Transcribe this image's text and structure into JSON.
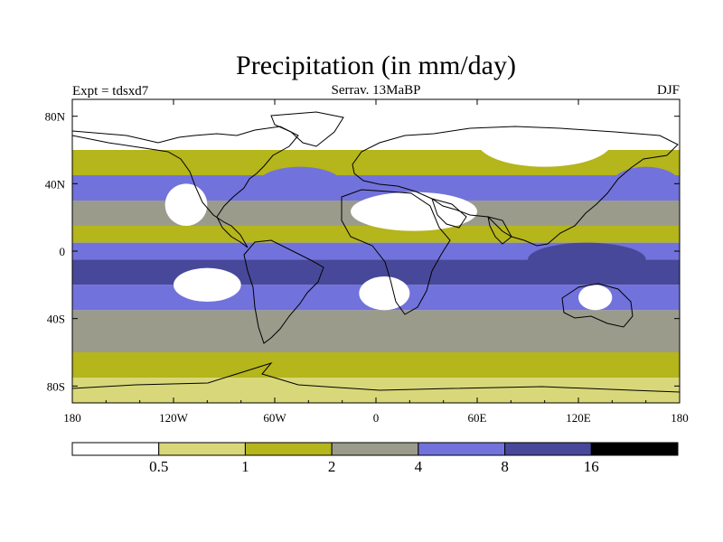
{
  "title": "Precipitation (in mm/day)",
  "header": {
    "left": "Expt = tdsxd7",
    "center": "Serrav.   13MaBP",
    "right": "DJF"
  },
  "map": {
    "lon_range": [
      -180,
      180
    ],
    "lat_range": [
      -90,
      90
    ],
    "lon_ticks": [
      {
        "value": -180,
        "label": "180"
      },
      {
        "value": -120,
        "label": "120W"
      },
      {
        "value": -60,
        "label": "60W"
      },
      {
        "value": 0,
        "label": "0"
      },
      {
        "value": 60,
        "label": "60E"
      },
      {
        "value": 120,
        "label": "120E"
      },
      {
        "value": 180,
        "label": "180"
      }
    ],
    "lat_ticks": [
      {
        "value": 80,
        "label": "80N"
      },
      {
        "value": 40,
        "label": "40N"
      },
      {
        "value": 0,
        "label": "0"
      },
      {
        "value": -40,
        "label": "40S"
      },
      {
        "value": -80,
        "label": "80S"
      }
    ]
  },
  "colorbar": {
    "colors": [
      "#ffffff",
      "#d8d87a",
      "#b5b51c",
      "#9b9b8c",
      "#7272dc",
      "#48489a",
      "#000000"
    ],
    "labels": [
      "0.5",
      "1",
      "2",
      "4",
      "8",
      "16"
    ]
  },
  "chart_data": {
    "type": "heatmap",
    "title": "Precipitation (in mm/day)",
    "variable": "Precipitation",
    "units": "mm/day",
    "levels": [
      0.5,
      1,
      2,
      4,
      8,
      16
    ],
    "bands": [
      {
        "lat": [
          60,
          90
        ],
        "class": 0
      },
      {
        "lat": [
          45,
          60
        ],
        "class": 2
      },
      {
        "lat": [
          30,
          45
        ],
        "class": 4
      },
      {
        "lat": [
          15,
          30
        ],
        "class": 3
      },
      {
        "lat": [
          5,
          15
        ],
        "class": 2
      },
      {
        "lat": [
          -5,
          5
        ],
        "class": 4
      },
      {
        "lat": [
          -20,
          -5
        ],
        "class": 5
      },
      {
        "lat": [
          -35,
          -20
        ],
        "class": 4
      },
      {
        "lat": [
          -60,
          -35
        ],
        "class": 3
      },
      {
        "lat": [
          -75,
          -60
        ],
        "class": 2
      },
      {
        "lat": [
          -90,
          -75
        ],
        "class": 1
      }
    ],
    "regions": [
      {
        "name": "Sahara/Arabia",
        "lon": [
          -15,
          60
        ],
        "lat": [
          12,
          35
        ],
        "class": 0
      },
      {
        "name": "North America west",
        "lon": [
          -125,
          -100
        ],
        "lat": [
          15,
          40
        ],
        "class": 0
      },
      {
        "name": "Southeast Pacific",
        "lon": [
          -120,
          -80
        ],
        "lat": [
          -30,
          -10
        ],
        "class": 0
      },
      {
        "name": "South Atlantic",
        "lon": [
          -10,
          20
        ],
        "lat": [
          -35,
          -15
        ],
        "class": 0
      },
      {
        "name": "Australia interior",
        "lon": [
          120,
          140
        ],
        "lat": [
          -35,
          -20
        ],
        "class": 0
      },
      {
        "name": "Maritime Continent",
        "lon": [
          90,
          160
        ],
        "lat": [
          -15,
          5
        ],
        "class": 5
      },
      {
        "name": "North Pacific storm track",
        "lon": [
          140,
          180
        ],
        "lat": [
          30,
          50
        ],
        "class": 4
      },
      {
        "name": "North Atlantic storm track",
        "lon": [
          -70,
          -20
        ],
        "lat": [
          30,
          50
        ],
        "class": 4
      },
      {
        "name": "Siberia",
        "lon": [
          60,
          140
        ],
        "lat": [
          50,
          80
        ],
        "class": 0
      }
    ]
  }
}
